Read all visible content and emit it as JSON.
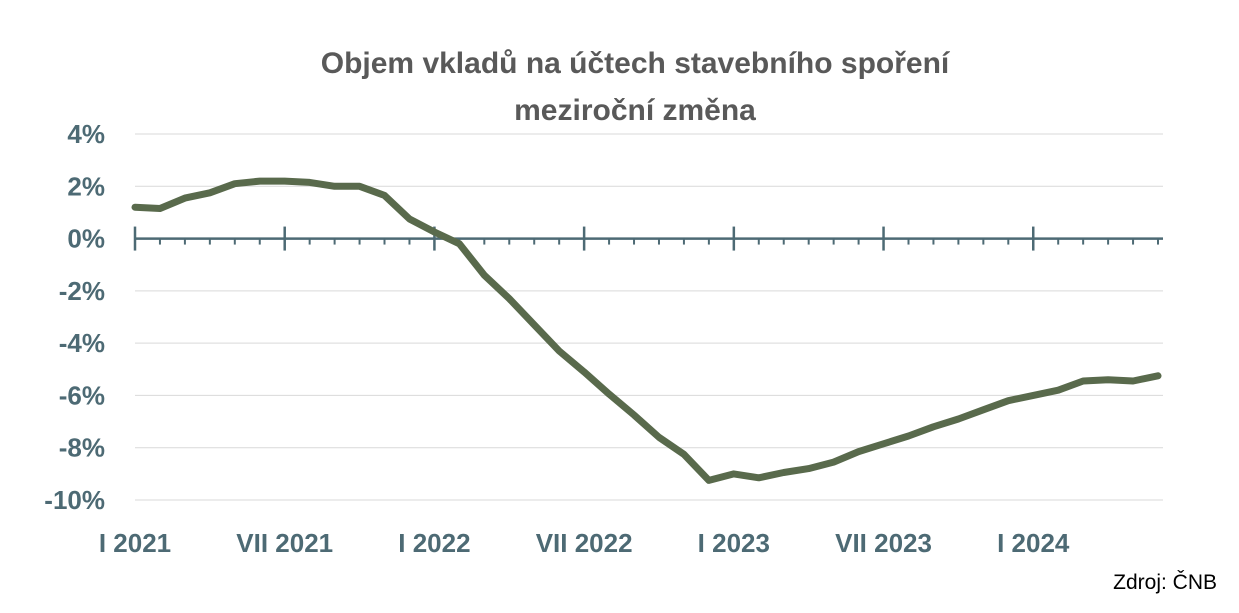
{
  "chart_data": {
    "type": "line",
    "title": [
      "Objem vkladů na účtech stavebního spoření",
      "meziroční změna"
    ],
    "xlabel": "",
    "ylabel": "",
    "ylim": [
      -10,
      4
    ],
    "y_ticks": [
      4,
      2,
      0,
      -2,
      -4,
      -6,
      -8,
      -10
    ],
    "y_tick_labels": [
      "4%",
      "2%",
      "0%",
      "-2%",
      "-4%",
      "-6%",
      "-8%",
      "-10%"
    ],
    "x_tick_labels": [
      {
        "label": "I 2021",
        "month": "2021-01"
      },
      {
        "label": "VII 2021",
        "month": "2021-07"
      },
      {
        "label": "I 2022",
        "month": "2022-01"
      },
      {
        "label": "VII 2022",
        "month": "2022-07"
      },
      {
        "label": "I 2023",
        "month": "2023-01"
      },
      {
        "label": "VII 2023",
        "month": "2023-07"
      },
      {
        "label": "I 2024",
        "month": "2024-01"
      }
    ],
    "grid": true,
    "line_color": "#596a4c",
    "series": [
      {
        "x": [
          "2021-01",
          "2021-02",
          "2021-03",
          "2021-04",
          "2021-05",
          "2021-06",
          "2021-07",
          "2021-08",
          "2021-09",
          "2021-10",
          "2021-11",
          "2021-12",
          "2022-01",
          "2022-02",
          "2022-03",
          "2022-04",
          "2022-05",
          "2022-06",
          "2022-07",
          "2022-08",
          "2022-09",
          "2022-10",
          "2022-11",
          "2022-12",
          "2023-01",
          "2023-02",
          "2023-03",
          "2023-04",
          "2023-05",
          "2023-06",
          "2023-07",
          "2023-08",
          "2023-09",
          "2023-10",
          "2023-11",
          "2023-12",
          "2024-01",
          "2024-02",
          "2024-03",
          "2024-04",
          "2024-05",
          "2024-06"
        ],
        "values": [
          1.2,
          1.15,
          1.55,
          1.75,
          2.1,
          2.2,
          2.2,
          2.15,
          2.0,
          2.0,
          1.65,
          0.75,
          0.25,
          -0.2,
          -1.4,
          -2.3,
          -3.3,
          -4.3,
          -5.1,
          -5.95,
          -6.75,
          -7.6,
          -8.25,
          -9.25,
          -9.0,
          -9.15,
          -8.95,
          -8.8,
          -8.55,
          -8.15,
          -7.85,
          -7.55,
          -7.2,
          -6.9,
          -6.55,
          -6.2,
          -6.0,
          -5.8,
          -5.45,
          -5.4,
          -5.45,
          -5.25
        ]
      }
    ]
  },
  "source_text": "Zdroj: ČNB"
}
